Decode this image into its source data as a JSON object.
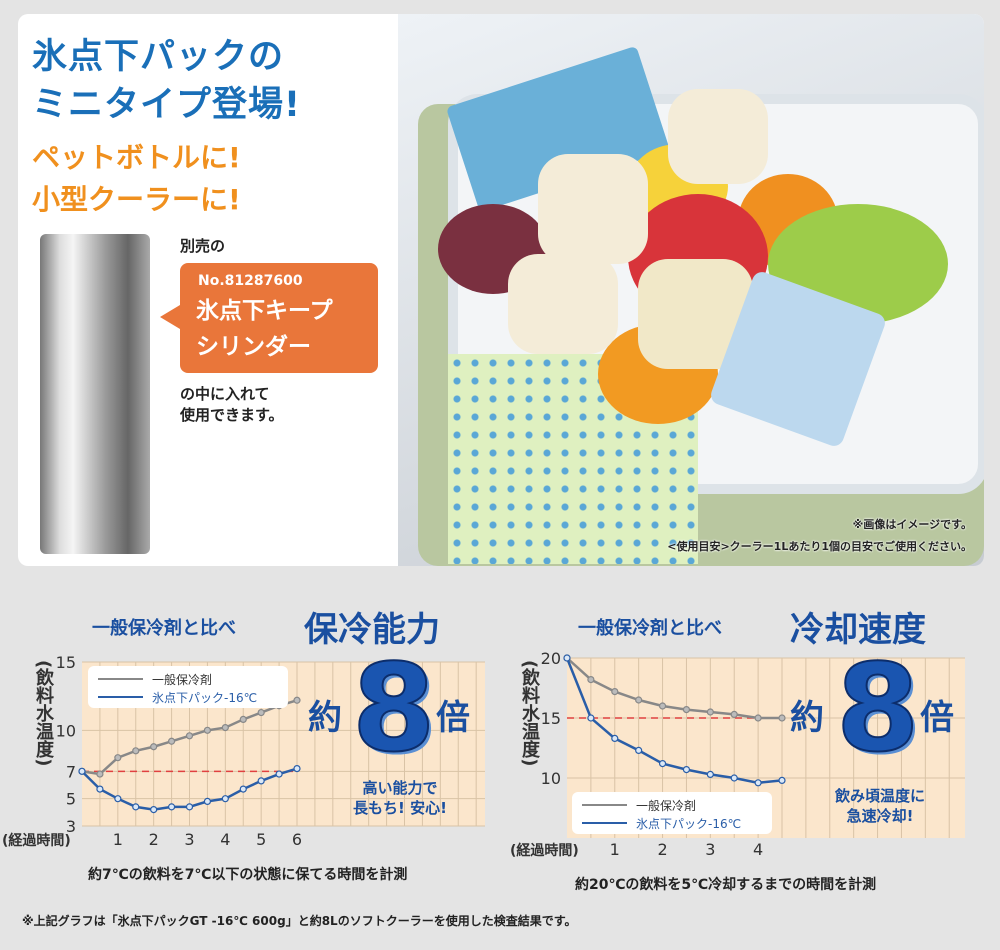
{
  "headline": {
    "line1": "氷点下パックの",
    "line2": "ミニタイプ登場!",
    "sub1": "ペットボトルに!",
    "sub2": "小型クーラーに!"
  },
  "callout": {
    "pre": "別売の",
    "model_no": "No.81287600",
    "name1": "氷点下キープ",
    "name2": "シリンダー",
    "post1": "の中に入れて",
    "post2": "使用できます。"
  },
  "photo_notes": {
    "note1": "※画像はイメージです。",
    "note2": "<使用目安>クーラー1Lあたり1個の目安でご使用ください。"
  },
  "footnote": "※上記グラフは「氷点下パックGT -16℃ 600g」と約8Lのソフトクーラーを使用した検査結果です。",
  "colors": {
    "blue_title": "#1a6fb8",
    "orange": "#f0901e",
    "callout_bg": "#e9763a",
    "plot_bg": "#fbe6cc",
    "gray_series": "#888888",
    "blue_series": "#2a5ea8",
    "threshold": "#e04040"
  },
  "chart_data": [
    {
      "type": "line",
      "subtitle": "一般保冷剤と比べ",
      "title": "保冷能力",
      "ylabel": "(飲料水温度)",
      "xlabel": "(経過時間)",
      "x_ticks": [
        "1",
        "2",
        "3",
        "4",
        "5",
        "6"
      ],
      "y_ticks": [
        "15",
        "10",
        "7",
        "5",
        "3"
      ],
      "xlim": [
        0,
        6
      ],
      "ylim": [
        3,
        15
      ],
      "threshold": 7,
      "grid": true,
      "legend": "top-left",
      "x": [
        0,
        0.5,
        1,
        1.5,
        2,
        2.5,
        3,
        3.5,
        4,
        4.5,
        5,
        5.5,
        6
      ],
      "series": [
        {
          "name": "一般保冷剤",
          "values": [
            7,
            6.8,
            8,
            8.5,
            8.8,
            9.2,
            9.6,
            10,
            10.2,
            10.8,
            11.3,
            11.8,
            12.2
          ]
        },
        {
          "name": "氷点下パック-16℃",
          "values": [
            7,
            5.7,
            5,
            4.4,
            4.2,
            4.4,
            4.4,
            4.8,
            5,
            5.7,
            6.3,
            6.8,
            7.2
          ]
        }
      ],
      "badge": {
        "pre": "約",
        "num": "8",
        "post": "倍"
      },
      "note1": "高い能力で",
      "note2": "長もち! 安心!",
      "caption": "約7℃の飲料を7℃以下の状態に保てる時間を計測"
    },
    {
      "type": "line",
      "subtitle": "一般保冷剤と比べ",
      "title": "冷却速度",
      "ylabel": "(飲料水温度)",
      "xlabel": "(経過時間)",
      "x_ticks": [
        "1",
        "2",
        "3",
        "4"
      ],
      "y_ticks": [
        "20",
        "15",
        "10"
      ],
      "xlim": [
        0,
        4.5
      ],
      "ylim": [
        5,
        20
      ],
      "threshold": 15,
      "grid": true,
      "legend": "bottom-left",
      "x": [
        0,
        0.5,
        1,
        1.5,
        2,
        2.5,
        3,
        3.5,
        4,
        4.5
      ],
      "series": [
        {
          "name": "一般保冷剤",
          "values": [
            20,
            18.2,
            17.2,
            16.5,
            16,
            15.7,
            15.5,
            15.3,
            15,
            15
          ]
        },
        {
          "name": "氷点下パック-16℃",
          "values": [
            20,
            15,
            13.3,
            12.3,
            11.2,
            10.7,
            10.3,
            10,
            9.6,
            9.8
          ]
        }
      ],
      "badge": {
        "pre": "約",
        "num": "8",
        "post": "倍"
      },
      "note1": "飲み頃温度に",
      "note2": "急速冷却!",
      "caption": "約20℃の飲料を5℃冷却するまでの時間を計測"
    }
  ]
}
